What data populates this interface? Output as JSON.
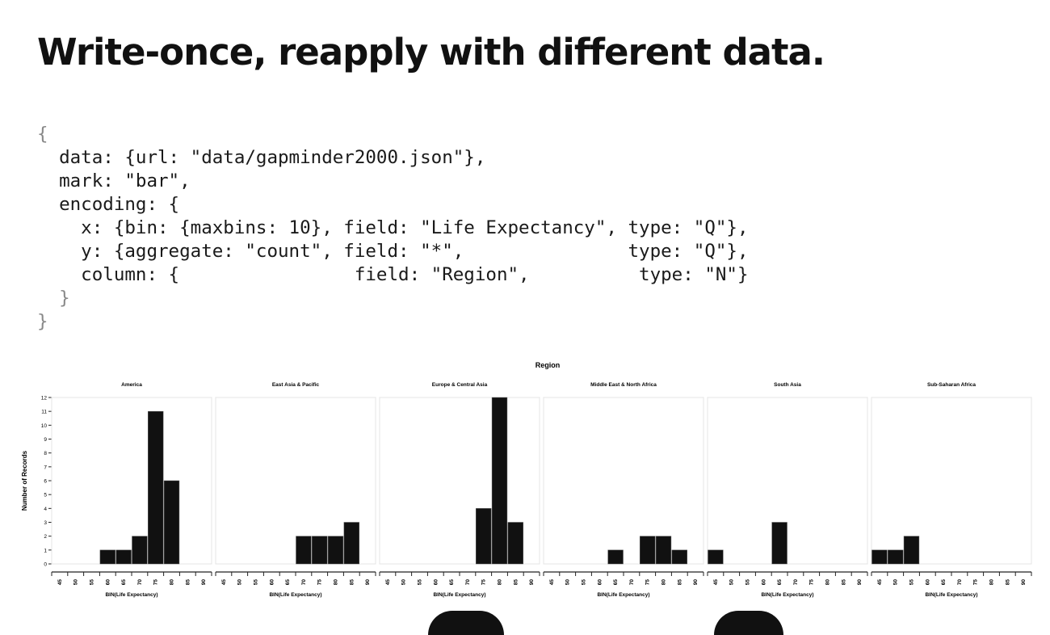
{
  "slide": {
    "title": "Write-once, reapply with different data."
  },
  "code": {
    "lines": [
      "{",
      "  data: {url: \"data/gapminder2000.json\"},",
      "  mark: \"bar\",",
      "  encoding: {",
      "    x: {bin: {maxbins: 10}, field: \"Life Expectancy\", type: \"Q\"},",
      "    y: {aggregate: \"count\", field: \"*\",               type: \"Q\"},",
      "    column: {                field: \"Region\",          type: \"N\"}",
      "  }",
      "}"
    ]
  },
  "chart_data": {
    "type": "bar",
    "title": "Region",
    "ylabel": "Number of Records",
    "ylim": [
      0,
      12
    ],
    "y_ticks": [
      "0",
      "1",
      "2",
      "3",
      "4",
      "5",
      "6",
      "7",
      "8",
      "9",
      "10",
      "11",
      "12"
    ],
    "x_bins": [
      45,
      50,
      55,
      60,
      65,
      70,
      75,
      80,
      85,
      90
    ],
    "facets": [
      {
        "name": "America",
        "values": [
          0,
          0,
          0,
          1,
          1,
          2,
          11,
          6,
          0,
          0
        ],
        "xlabel": "BIN(Life Expectancy)"
      },
      {
        "name": "East Asia & Pacific",
        "values": [
          0,
          0,
          0,
          0,
          0,
          2,
          2,
          2,
          3,
          0
        ],
        "xlabel": "BIN(Life Expectancy)"
      },
      {
        "name": "Europe & Central Asia",
        "values": [
          0,
          0,
          0,
          0,
          0,
          0,
          4,
          12,
          3,
          0
        ],
        "xlabel": "BIN(Life Expectancy)"
      },
      {
        "name": "Middle East & North Africa",
        "values": [
          0,
          0,
          0,
          0,
          1,
          0,
          2,
          2,
          1,
          0
        ],
        "xlabel": "BIN(Life Expectancy)"
      },
      {
        "name": "South Asia",
        "values": [
          1,
          0,
          0,
          0,
          3,
          0,
          0,
          0,
          0,
          0
        ],
        "xlabel": "BIN(Life Expectancy)"
      },
      {
        "name": "Sub-Saharan Africa",
        "values": [
          1,
          1,
          2,
          0,
          0,
          0,
          0,
          0,
          0,
          0
        ],
        "xlabel": "BIN(Life Expectancy)"
      }
    ],
    "bar_color": "#111111",
    "grid": false
  }
}
